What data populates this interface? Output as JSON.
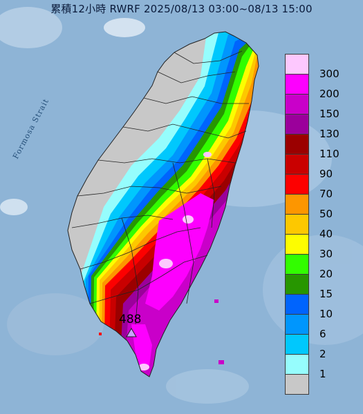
{
  "title": "累積12小時 RWRF 2025/08/13 03:00~08/13 15:00",
  "map_labels": {
    "strait": "Formosa Strait"
  },
  "max_marker": {
    "value": "488",
    "icon": "triangle-marker-icon",
    "color": "#c9a2ff"
  },
  "legend": [
    {
      "label": "300",
      "color": "#fdc8fe"
    },
    {
      "label": "200",
      "color": "#fd00fe"
    },
    {
      "label": "150",
      "color": "#c900c9"
    },
    {
      "label": "130",
      "color": "#9b009b"
    },
    {
      "label": "110",
      "color": "#9b0000"
    },
    {
      "label": "90",
      "color": "#c90000"
    },
    {
      "label": "70",
      "color": "#fd0000"
    },
    {
      "label": "50",
      "color": "#fd9600"
    },
    {
      "label": "40",
      "color": "#fdc800"
    },
    {
      "label": "30",
      "color": "#fdfd00"
    },
    {
      "label": "20",
      "color": "#32fd00"
    },
    {
      "label": "15",
      "color": "#279600"
    },
    {
      "label": "10",
      "color": "#0064fd"
    },
    {
      "label": "6",
      "color": "#0096fd"
    },
    {
      "label": "2",
      "color": "#00c8fd"
    },
    {
      "label": "1",
      "color": "#96fdfd"
    },
    {
      "label": "",
      "color": "#c8c8c8"
    }
  ]
}
